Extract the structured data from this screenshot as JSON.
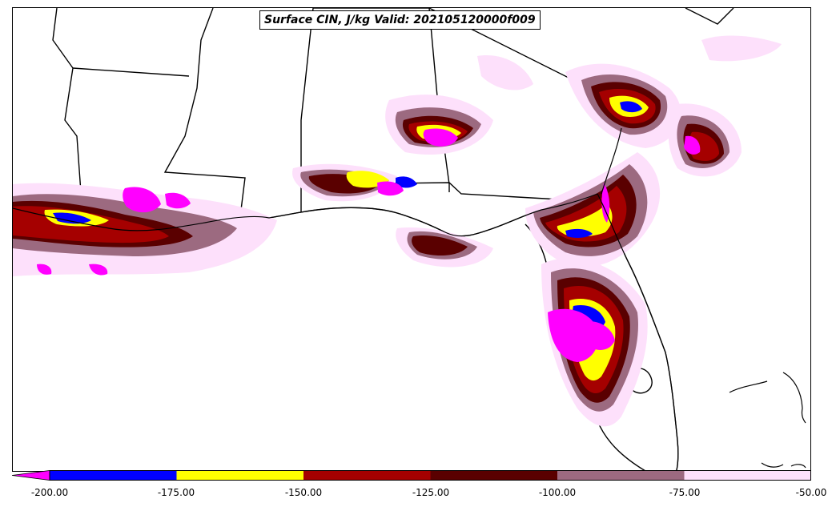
{
  "map": {
    "title": "Surface CIN, J/kg Valid: 202105120000f009",
    "colors": {
      "bin_below_200": "#ff00ff",
      "bin_200_175": "#0000ff",
      "bin_175_150": "#ffff00",
      "bin_150_125": "#a50000",
      "bin_125_100": "#5a0000",
      "bin_100_75": "#9c6a80",
      "bin_75_50": "#fde0fb",
      "boundary": "#000000"
    }
  },
  "colorbar": {
    "ticks": [
      "-200.00",
      "-175.00",
      "-150.00",
      "-125.00",
      "-100.00",
      "-75.00",
      "-50.00"
    ],
    "bins": [
      {
        "from": "-200",
        "to": "-175",
        "color": "#0000ff"
      },
      {
        "from": "-175",
        "to": "-150",
        "color": "#ffff00"
      },
      {
        "from": "-150",
        "to": "-125",
        "color": "#a50000"
      },
      {
        "from": "-125",
        "to": "-100",
        "color": "#5a0000"
      },
      {
        "from": "-100",
        "to": "-75",
        "color": "#9c6a80"
      },
      {
        "from": "-75",
        "to": "-50",
        "color": "#fde0fb"
      }
    ],
    "extend_color": "#ff00ff"
  }
}
